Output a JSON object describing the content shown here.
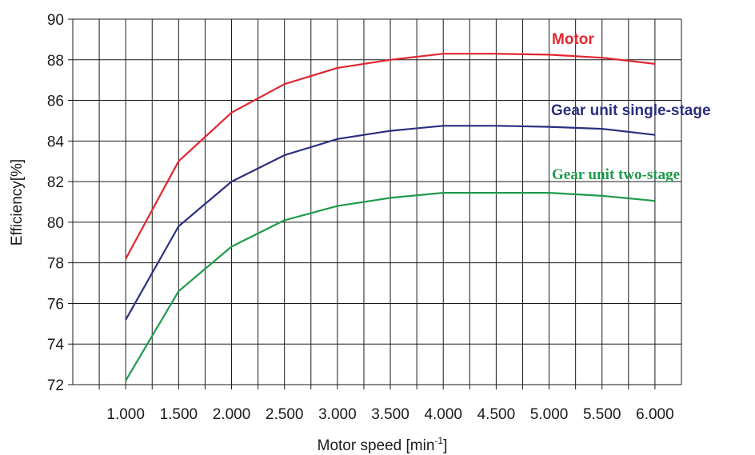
{
  "chart_data": {
    "type": "line",
    "xlabel": "Motor speed [min",
    "xlabel_sup": "-1",
    "xlabel_end": "]",
    "ylabel": "Efficiency[%]",
    "x": [
      1000,
      1500,
      2000,
      2500,
      3000,
      3500,
      4000,
      4500,
      5000,
      5500,
      6000
    ],
    "x_tick_labels": [
      "1.000",
      "1.500",
      "2.000",
      "2.500",
      "3.000",
      "3.500",
      "4.000",
      "4.500",
      "5.000",
      "5.500",
      "6.000"
    ],
    "xlim": [
      500,
      6250
    ],
    "y_ticks": [
      72,
      74,
      76,
      78,
      80,
      82,
      84,
      86,
      88,
      90
    ],
    "ylim": [
      72,
      90
    ],
    "grid": true,
    "series": [
      {
        "name": "Motor",
        "color": "#e0262e",
        "values": [
          78.2,
          83.0,
          85.4,
          86.8,
          87.6,
          88.0,
          88.3,
          88.3,
          88.25,
          88.1,
          87.8
        ]
      },
      {
        "name": "Gear unit single-stage",
        "color": "#2b2f7f",
        "values": [
          75.2,
          79.8,
          82.0,
          83.3,
          84.1,
          84.5,
          84.75,
          84.75,
          84.7,
          84.6,
          84.3
        ]
      },
      {
        "name": "Gear unit two-stage",
        "color": "#1f9a4b",
        "values": [
          72.2,
          76.6,
          78.8,
          80.1,
          80.8,
          81.2,
          81.45,
          81.45,
          81.45,
          81.3,
          81.05
        ]
      }
    ]
  }
}
